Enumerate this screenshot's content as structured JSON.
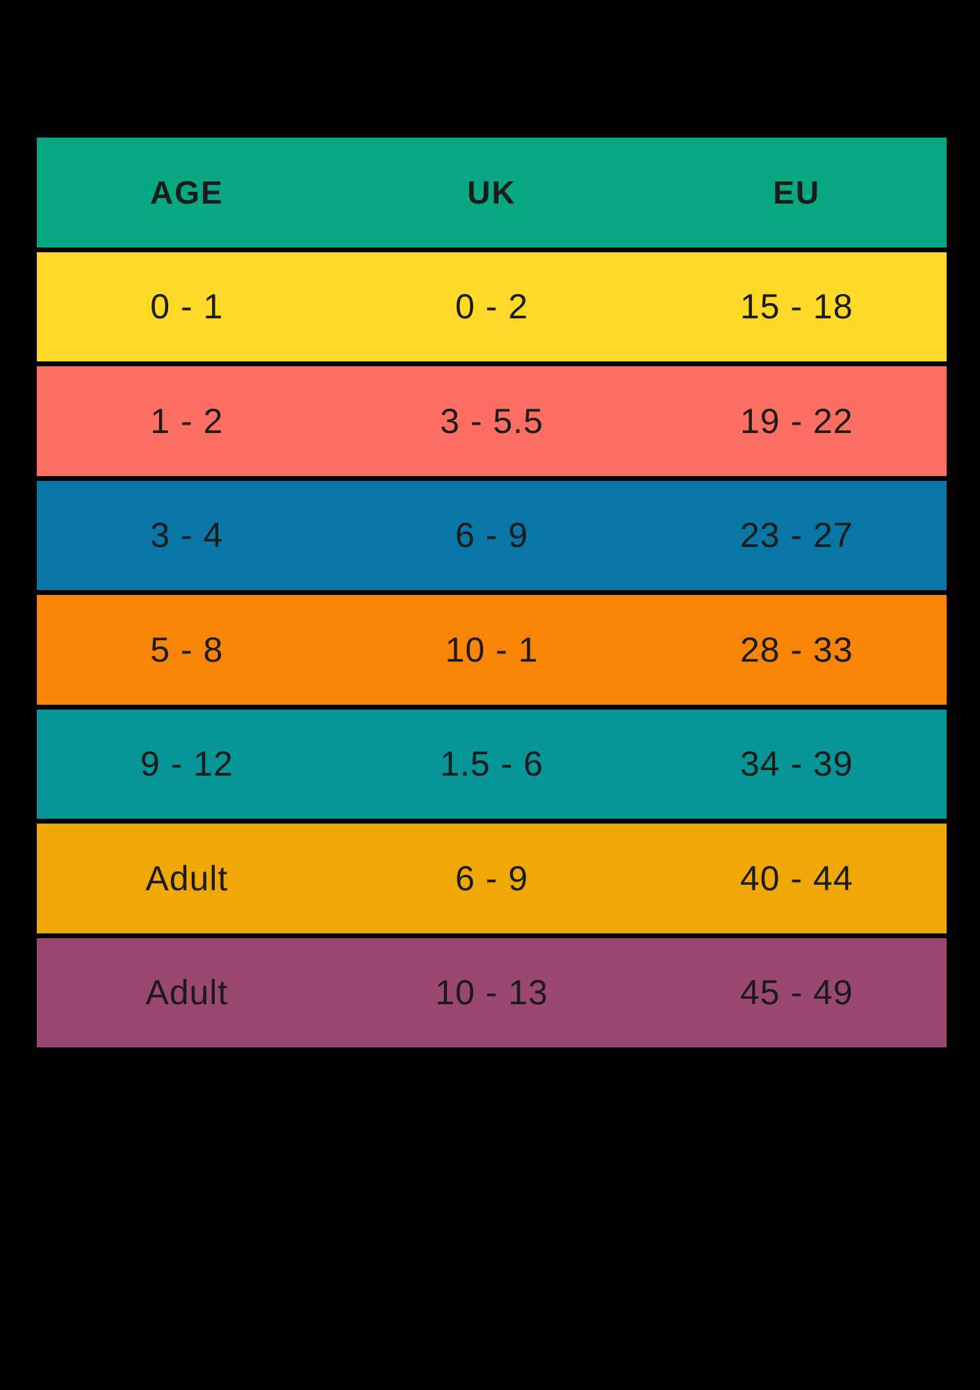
{
  "colors": {
    "background": "#000000",
    "text": "#1b1b1b",
    "header_bg": "#07a882",
    "row_yellow": "#fed928",
    "row_salmon": "#fd6f62",
    "row_blue": "#0877a6",
    "row_orange": "#f88408",
    "row_teal": "#079598",
    "row_amber": "#f0a806",
    "row_purple": "#9b4870"
  },
  "table": {
    "headers": [
      {
        "label": "AGE"
      },
      {
        "label": "UK"
      },
      {
        "label": "EU"
      }
    ],
    "header_bg": "#07a882",
    "rows": [
      {
        "age": "0 - 1",
        "uk": "0 - 2",
        "eu": "15 - 18",
        "bg": "#fed928"
      },
      {
        "age": "1 - 2",
        "uk": "3 - 5.5",
        "eu": "19 - 22",
        "bg": "#fd6f62"
      },
      {
        "age": "3 - 4",
        "uk": "6 - 9",
        "eu": "23 - 27",
        "bg": "#0877a6"
      },
      {
        "age": "5 - 8",
        "uk": "10 - 1",
        "eu": "28 - 33",
        "bg": "#f88408"
      },
      {
        "age": "9 - 12",
        "uk": "1.5 - 6",
        "eu": "34 - 39",
        "bg": "#079598"
      },
      {
        "age": "Adult",
        "uk": "6 - 9",
        "eu": "40 - 44",
        "bg": "#f0a806"
      },
      {
        "age": "Adult",
        "uk": "10 - 13",
        "eu": "45 - 49",
        "bg": "#9b4870"
      }
    ]
  },
  "chart_data": {
    "type": "table",
    "columns": [
      "AGE",
      "UK",
      "EU"
    ],
    "rows": [
      [
        "0 - 1",
        "0 - 2",
        "15 - 18"
      ],
      [
        "1 - 2",
        "3 - 5.5",
        "19 - 22"
      ],
      [
        "3 - 4",
        "6 - 9",
        "23 - 27"
      ],
      [
        "5 - 8",
        "10 - 1",
        "28 - 33"
      ],
      [
        "9 - 12",
        "1.5 - 6",
        "34 - 39"
      ],
      [
        "Adult",
        "6 - 9",
        "40 - 44"
      ],
      [
        "Adult",
        "10 - 13",
        "45 - 49"
      ]
    ],
    "row_colors": [
      "#fed928",
      "#fd6f62",
      "#0877a6",
      "#f88408",
      "#079598",
      "#f0a806",
      "#9b4870"
    ],
    "header_color": "#07a882",
    "layout": "grid of colored cells with black gaps on black background"
  }
}
